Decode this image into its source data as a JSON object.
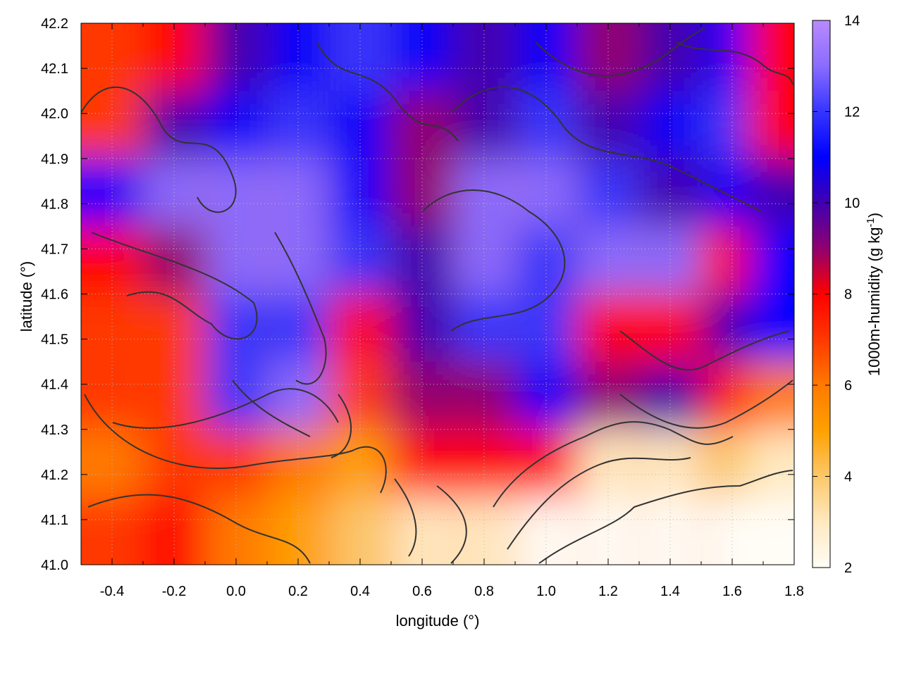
{
  "chart_data": {
    "type": "heatmap",
    "xlabel": "longitude (°)",
    "ylabel": "latitude (°)",
    "xlim": [
      -0.5,
      1.8
    ],
    "ylim": [
      41.0,
      42.2
    ],
    "xticks": [
      "-0.4",
      "-0.2",
      "0.0",
      "0.2",
      "0.4",
      "0.6",
      "0.8",
      "1.0",
      "1.2",
      "1.4",
      "1.6",
      "1.8"
    ],
    "yticks": [
      "41.0",
      "41.1",
      "41.2",
      "41.3",
      "41.4",
      "41.5",
      "41.6",
      "41.7",
      "41.8",
      "41.9",
      "42.0",
      "42.1",
      "42.2"
    ],
    "colorbar": {
      "label_main": "1000m-humidity (g kg",
      "label_sup": "-1",
      "label_end": ")",
      "range": [
        2,
        14
      ],
      "ticks": [
        "2",
        "4",
        "6",
        "8",
        "10",
        "12",
        "14"
      ],
      "stops": [
        {
          "v": 2,
          "color": "#fffdf6"
        },
        {
          "v": 3,
          "color": "#ffe9c0"
        },
        {
          "v": 4,
          "color": "#fcc86a"
        },
        {
          "v": 5,
          "color": "#ffa000"
        },
        {
          "v": 6,
          "color": "#ff7a00"
        },
        {
          "v": 7,
          "color": "#ff3800"
        },
        {
          "v": 8,
          "color": "#ff0000"
        },
        {
          "v": 9,
          "color": "#900070"
        },
        {
          "v": 10,
          "color": "#4000b0"
        },
        {
          "v": 11,
          "color": "#0000ff"
        },
        {
          "v": 12,
          "color": "#3535ff"
        },
        {
          "v": 13,
          "color": "#8a6cff"
        },
        {
          "v": 14,
          "color": "#b88aff"
        }
      ]
    },
    "grid_lon": [
      -0.4,
      -0.2,
      0.0,
      0.2,
      0.4,
      0.6,
      0.8,
      1.0,
      1.2,
      1.4,
      1.6,
      1.75
    ],
    "grid_lat": [
      42.125,
      41.975,
      41.825,
      41.675,
      41.525,
      41.375,
      41.225,
      41.075
    ],
    "values": [
      [
        7,
        8,
        10,
        11,
        12,
        11,
        10,
        11,
        9,
        10,
        11,
        8
      ],
      [
        7,
        10,
        11,
        12,
        11,
        9,
        10,
        12,
        10,
        11,
        12,
        8
      ],
      [
        11,
        13,
        13,
        13,
        11,
        9,
        13,
        13,
        12,
        10,
        11,
        10
      ],
      [
        8,
        9,
        13,
        13,
        12,
        10,
        13,
        12,
        13,
        13,
        8,
        11
      ],
      [
        7,
        7,
        12,
        12,
        8,
        10,
        12,
        12,
        8,
        8,
        10,
        11
      ],
      [
        7,
        7,
        12,
        13,
        7,
        9,
        9,
        11,
        9,
        10,
        8,
        6
      ],
      [
        6,
        7,
        7,
        6,
        5,
        8,
        8,
        8,
        3,
        3,
        4,
        3
      ],
      [
        7,
        8,
        6,
        5,
        4,
        3,
        3,
        2,
        2,
        2,
        2,
        2
      ]
    ],
    "grid": true,
    "contours": true
  }
}
